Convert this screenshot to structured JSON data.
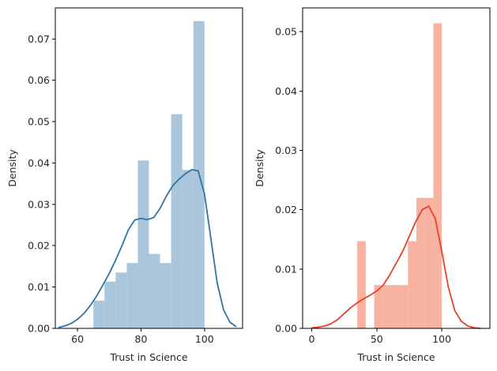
{
  "chart_data": [
    {
      "type": "histogram",
      "xlabel": "Trust in Science",
      "ylabel": "Density",
      "xlim": [
        53,
        112
      ],
      "ylim": [
        0,
        0.0775
      ],
      "xticks": [
        60,
        80,
        100
      ],
      "yticks": [
        0.0,
        0.01,
        0.02,
        0.03,
        0.04,
        0.05,
        0.06,
        0.07
      ],
      "ytick_labels": [
        "0.00",
        "0.01",
        "0.02",
        "0.03",
        "0.04",
        "0.05",
        "0.06",
        "0.07"
      ],
      "grid": false,
      "bar_color": "#a9c6dd",
      "kde_color": "#3274a1",
      "bins": [
        {
          "x0": 65.0,
          "x1": 68.5,
          "density": 0.0067
        },
        {
          "x0": 68.5,
          "x1": 72.0,
          "density": 0.0113
        },
        {
          "x0": 72.0,
          "x1": 75.5,
          "density": 0.0135
        },
        {
          "x0": 75.5,
          "x1": 79.0,
          "density": 0.0158
        },
        {
          "x0": 79.0,
          "x1": 82.5,
          "density": 0.0406
        },
        {
          "x0": 82.5,
          "x1": 86.0,
          "density": 0.018
        },
        {
          "x0": 86.0,
          "x1": 89.5,
          "density": 0.0158
        },
        {
          "x0": 89.5,
          "x1": 93.0,
          "density": 0.0518
        },
        {
          "x0": 93.0,
          "x1": 96.5,
          "density": 0.0383
        },
        {
          "x0": 96.5,
          "x1": 100.0,
          "density": 0.0743
        }
      ],
      "kde": {
        "x": [
          54,
          56,
          58,
          60,
          62,
          64,
          66,
          68,
          70,
          72,
          74,
          76,
          78,
          80,
          82,
          84,
          86,
          88,
          90,
          92,
          94,
          96,
          98,
          100,
          102,
          104,
          106,
          108,
          110
        ],
        "y": [
          0.0002,
          0.0006,
          0.0012,
          0.0022,
          0.0036,
          0.0055,
          0.0078,
          0.0105,
          0.0133,
          0.0165,
          0.02,
          0.0238,
          0.0262,
          0.0266,
          0.0263,
          0.0268,
          0.029,
          0.032,
          0.0345,
          0.0361,
          0.0374,
          0.0384,
          0.0381,
          0.0325,
          0.0218,
          0.011,
          0.0045,
          0.0015,
          0.0004
        ]
      }
    },
    {
      "type": "histogram",
      "xlabel": "Trust in Science",
      "ylabel": "Density",
      "xlim": [
        -7,
        137
      ],
      "ylim": [
        0,
        0.054
      ],
      "xticks": [
        0,
        50,
        100
      ],
      "yticks": [
        0.0,
        0.01,
        0.02,
        0.03,
        0.04,
        0.05
      ],
      "ytick_labels": [
        "0.00",
        "0.01",
        "0.02",
        "0.03",
        "0.04",
        "0.05"
      ],
      "grid": false,
      "bar_color": "#f8b2a1",
      "kde_color": "#e8412a",
      "bins": [
        {
          "x0": 35.0,
          "x1": 41.5,
          "density": 0.0147
        },
        {
          "x0": 41.5,
          "x1": 48.0,
          "density": 0.0
        },
        {
          "x0": 48.0,
          "x1": 54.5,
          "density": 0.0073
        },
        {
          "x0": 54.5,
          "x1": 61.0,
          "density": 0.0073
        },
        {
          "x0": 61.0,
          "x1": 67.5,
          "density": 0.0073
        },
        {
          "x0": 67.5,
          "x1": 74.0,
          "density": 0.0073
        },
        {
          "x0": 74.0,
          "x1": 80.5,
          "density": 0.0147
        },
        {
          "x0": 80.5,
          "x1": 87.0,
          "density": 0.022
        },
        {
          "x0": 87.0,
          "x1": 93.5,
          "density": 0.022
        },
        {
          "x0": 93.5,
          "x1": 100.0,
          "density": 0.0514
        }
      ],
      "kde": {
        "x": [
          0,
          5,
          10,
          15,
          20,
          25,
          30,
          35,
          40,
          45,
          50,
          55,
          60,
          65,
          70,
          75,
          80,
          85,
          90,
          95,
          100,
          105,
          110,
          115,
          120,
          125,
          130
        ],
        "y": [
          0.0001,
          0.0002,
          0.0004,
          0.0008,
          0.0015,
          0.0025,
          0.0035,
          0.0043,
          0.005,
          0.0056,
          0.0063,
          0.0073,
          0.009,
          0.011,
          0.013,
          0.0155,
          0.018,
          0.02,
          0.0206,
          0.0185,
          0.013,
          0.007,
          0.003,
          0.0012,
          0.0004,
          0.0001,
          0.0
        ]
      }
    }
  ]
}
